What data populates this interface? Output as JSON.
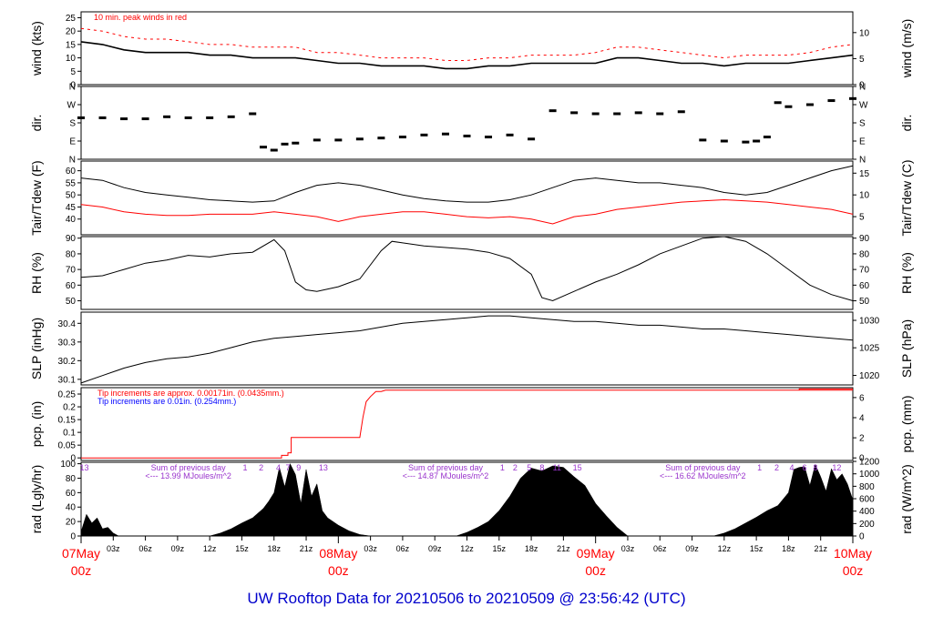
{
  "colors": {
    "axis": "#000000",
    "peak": "#ff0000",
    "rain": "#ff0000",
    "tip_blue": "#0000ff",
    "purple": "#9933cc",
    "title": "#0000cc",
    "date": "#ff0000"
  },
  "title": "UW Rooftop Data for 20210506  to  20210509 @ 23:56:42  (UTC)",
  "chart_data": [
    {
      "type": "line",
      "id": "wind",
      "ylabel": "wind (kts)",
      "ylabel_right": "wind (m/s)",
      "ylim": [
        0,
        27.2
      ],
      "yticks": [
        0,
        5,
        10,
        15,
        20,
        25
      ],
      "yticks_right": [
        {
          "label": "0",
          "at": 0
        },
        {
          "label": "5",
          "at": 9.72
        },
        {
          "label": "10",
          "at": 19.44
        }
      ],
      "annotation": "10 min. peak winds in red",
      "series": [
        {
          "role": "wind",
          "x": [
            0,
            2,
            4,
            6,
            8,
            10,
            12,
            14,
            16,
            18,
            20,
            22,
            24,
            26,
            28,
            30,
            32,
            34,
            36,
            38,
            40,
            42,
            44,
            46,
            48,
            50,
            52,
            54,
            56,
            58,
            60,
            62,
            64,
            66,
            68,
            70,
            72
          ],
          "y": [
            16,
            15,
            13,
            12,
            12,
            12,
            11,
            11,
            10,
            10,
            10,
            9,
            8,
            8,
            7,
            7,
            7,
            6,
            6,
            7,
            7,
            8,
            8,
            8,
            8,
            10,
            10,
            9,
            8,
            8,
            7,
            8,
            8,
            8,
            9,
            10,
            11
          ]
        },
        {
          "role": "peak",
          "x": [
            0,
            2,
            4,
            6,
            8,
            10,
            12,
            14,
            16,
            18,
            20,
            22,
            24,
            26,
            28,
            30,
            32,
            34,
            36,
            38,
            40,
            42,
            44,
            46,
            48,
            50,
            52,
            54,
            56,
            58,
            60,
            62,
            64,
            66,
            68,
            70,
            72
          ],
          "y": [
            21,
            20,
            18,
            17,
            17,
            16,
            15,
            15,
            14,
            14,
            14,
            12,
            12,
            11,
            10,
            10,
            10,
            9,
            9,
            10,
            10,
            11,
            11,
            11,
            12,
            14,
            14,
            13,
            12,
            11,
            10,
            11,
            11,
            11,
            12,
            14,
            15
          ]
        }
      ]
    },
    {
      "type": "scatter",
      "id": "dir",
      "ylabel": "dir.",
      "ylabel_right": "dir.",
      "ylim": [
        0,
        360
      ],
      "yticks": [
        {
          "label": "N",
          "at": 0
        },
        {
          "label": "E",
          "at": 90
        },
        {
          "label": "S",
          "at": 180
        },
        {
          "label": "W",
          "at": 270
        },
        {
          "label": "N",
          "at": 360
        }
      ],
      "series": [
        {
          "x": [
            0,
            2,
            4,
            6,
            8,
            10,
            12,
            14,
            16,
            17,
            18,
            19,
            20,
            22,
            24,
            26,
            28,
            30,
            32,
            34,
            36,
            38,
            40,
            42,
            44,
            46,
            48,
            50,
            52,
            54,
            56,
            58,
            60,
            62,
            63,
            64,
            65,
            66,
            68,
            70,
            72
          ],
          "y": [
            205,
            205,
            200,
            200,
            210,
            205,
            205,
            210,
            225,
            60,
            45,
            75,
            80,
            95,
            95,
            100,
            105,
            110,
            120,
            125,
            115,
            110,
            120,
            100,
            240,
            230,
            225,
            225,
            230,
            225,
            235,
            95,
            90,
            85,
            90,
            110,
            280,
            260,
            270,
            290,
            300
          ]
        }
      ]
    },
    {
      "type": "line",
      "id": "temp",
      "ylabel": "Tair/Tdew (F)",
      "ylabel_right": "Tair/Tdew (C)",
      "ylim": [
        33.5,
        64
      ],
      "yticks": [
        40,
        45,
        50,
        55,
        60
      ],
      "yticks_right": [
        {
          "label": "5",
          "at": 41
        },
        {
          "label": "10",
          "at": 50
        },
        {
          "label": "15",
          "at": 59
        }
      ],
      "series": [
        {
          "name": "Tair",
          "x": [
            0,
            2,
            4,
            6,
            8,
            10,
            12,
            14,
            16,
            18,
            20,
            22,
            24,
            26,
            28,
            30,
            32,
            34,
            36,
            38,
            40,
            42,
            44,
            46,
            48,
            50,
            52,
            54,
            56,
            58,
            60,
            62,
            64,
            66,
            68,
            70,
            72
          ],
          "y": [
            57,
            56,
            53,
            51,
            50,
            49,
            48,
            47.5,
            47,
            47.5,
            51,
            54,
            55,
            54,
            52,
            50,
            48.5,
            47.5,
            47,
            47,
            48,
            50,
            53,
            56,
            57,
            56,
            55,
            55,
            54,
            53,
            51,
            50,
            51,
            54,
            57,
            60,
            62
          ]
        },
        {
          "name": "Tdew",
          "x": [
            0,
            2,
            4,
            6,
            8,
            10,
            12,
            14,
            16,
            18,
            20,
            22,
            24,
            26,
            28,
            30,
            32,
            34,
            36,
            38,
            40,
            42,
            44,
            46,
            48,
            50,
            52,
            54,
            56,
            58,
            60,
            62,
            64,
            66,
            68,
            70,
            72
          ],
          "y": [
            46,
            45,
            43,
            42,
            41.5,
            41.5,
            42,
            42,
            42,
            43,
            42,
            41,
            39,
            41,
            42,
            43,
            43,
            42,
            41,
            40.5,
            41,
            40,
            38,
            41,
            42,
            44,
            45,
            46,
            47,
            47.5,
            48,
            47.5,
            47,
            46,
            45,
            44,
            42
          ]
        }
      ]
    },
    {
      "type": "line",
      "id": "rh",
      "ylabel": "RH (%)",
      "ylabel_right": "RH (%)",
      "ylim": [
        44.5,
        91
      ],
      "yticks": [
        50,
        60,
        70,
        80,
        90
      ],
      "series": [
        {
          "x": [
            0,
            2,
            4,
            6,
            8,
            10,
            12,
            14,
            16,
            18,
            19,
            20,
            21,
            22,
            24,
            26,
            28,
            29,
            30,
            32,
            34,
            36,
            38,
            40,
            42,
            43,
            44,
            46,
            48,
            50,
            52,
            54,
            56,
            58,
            60,
            62,
            64,
            66,
            68,
            70,
            72
          ],
          "y": [
            65,
            66,
            70,
            74,
            76,
            79,
            78,
            80,
            81,
            89,
            82,
            62,
            57,
            56,
            59,
            64,
            82,
            88,
            87,
            85,
            84,
            83,
            81,
            77,
            67,
            52,
            50,
            56,
            62,
            67,
            73,
            80,
            85,
            90,
            91,
            88,
            80,
            70,
            60,
            54,
            50
          ]
        }
      ]
    },
    {
      "type": "line",
      "id": "slp",
      "ylabel": "SLP (inHg)",
      "ylabel_right": "SLP (hPa)",
      "ylim": [
        30.07,
        30.46
      ],
      "yticks": [
        30.1,
        30.2,
        30.3,
        30.4
      ],
      "yticks_right": [
        {
          "label": "1020",
          "at": 30.121
        },
        {
          "label": "1025",
          "at": 30.269
        },
        {
          "label": "1030",
          "at": 30.416
        }
      ],
      "series": [
        {
          "x": [
            0,
            2,
            4,
            6,
            8,
            10,
            12,
            14,
            16,
            18,
            20,
            22,
            24,
            26,
            28,
            30,
            32,
            34,
            36,
            38,
            40,
            42,
            44,
            46,
            48,
            50,
            52,
            54,
            56,
            58,
            60,
            62,
            64,
            66,
            68,
            70,
            72
          ],
          "y": [
            30.08,
            30.12,
            30.16,
            30.19,
            30.21,
            30.22,
            30.24,
            30.27,
            30.3,
            30.32,
            30.33,
            30.34,
            30.35,
            30.36,
            30.38,
            30.4,
            30.41,
            30.42,
            30.43,
            30.44,
            30.44,
            30.43,
            30.42,
            30.41,
            30.41,
            30.4,
            30.39,
            30.39,
            30.38,
            30.37,
            30.37,
            30.36,
            30.35,
            30.34,
            30.33,
            30.32,
            30.31
          ]
        }
      ]
    },
    {
      "type": "line",
      "id": "pcp",
      "ylabel": "pcp. (in)",
      "ylabel_right": "pcp. (mm)",
      "ylim": [
        -0.01,
        0.275
      ],
      "yticks": [
        0,
        0.05,
        0.1,
        0.15,
        0.2,
        0.25
      ],
      "yticks_right": [
        {
          "label": "0",
          "at": 0
        },
        {
          "label": "2",
          "at": 0.0787
        },
        {
          "label": "4",
          "at": 0.1575
        },
        {
          "label": "6",
          "at": 0.2362
        }
      ],
      "notes": [
        {
          "text": "Tip increments are approx. 0.00171in. (0.0435mm.)",
          "color": "red"
        },
        {
          "text": "Tip increments are 0.01in. (0.254mm.)",
          "color": "blue"
        }
      ],
      "series": [
        {
          "name": "tipping",
          "x": [
            0,
            18.7,
            18.7,
            19.3,
            19.3,
            19.6,
            19.6,
            26.0,
            26.3,
            26.6,
            27.0,
            27.5,
            28.0,
            28.4,
            72
          ],
          "y": [
            0,
            0,
            0.01,
            0.01,
            0.02,
            0.02,
            0.08,
            0.08,
            0.16,
            0.22,
            0.24,
            0.26,
            0.26,
            0.265,
            0.265
          ]
        },
        {
          "name": "tipping-late",
          "x": [
            67,
            67,
            72
          ],
          "y": [
            0.265,
            0.27,
            0.27
          ]
        }
      ]
    },
    {
      "type": "area",
      "id": "rad",
      "ylabel": "rad (Lgly/hr)",
      "ylabel_right": "rad (W/m^2)",
      "ylim": [
        0,
        102
      ],
      "yticks": [
        0,
        20,
        40,
        60,
        80,
        100
      ],
      "yticks_right": [
        {
          "label": "0",
          "at": 0
        },
        {
          "label": "200",
          "at": 17.2
        },
        {
          "label": "400",
          "at": 34.4
        },
        {
          "label": "600",
          "at": 51.6
        },
        {
          "label": "800",
          "at": 68.8
        },
        {
          "label": "1000",
          "at": 86.0
        },
        {
          "label": "1200",
          "at": 103.2
        }
      ],
      "day_notes": [
        {
          "x": 10,
          "text": "Sum of previous day"
        },
        {
          "x": 10,
          "text": "<--- 13.99 MJoules/m^2"
        },
        {
          "x": 34,
          "text": "Sum of previous day"
        },
        {
          "x": 34,
          "text": "<--- 14.87 MJoules/m^2"
        },
        {
          "x": 58,
          "text": "Sum of previous day"
        },
        {
          "x": 58,
          "text": "<--- 16.62 MJoules/m^2"
        }
      ],
      "hour_marks": [
        {
          "x": 0.3,
          "label": "13"
        },
        {
          "x": 15.3,
          "label": "1"
        },
        {
          "x": 16.8,
          "label": "2"
        },
        {
          "x": 18.4,
          "label": "4"
        },
        {
          "x": 19.3,
          "label": "7"
        },
        {
          "x": 20.3,
          "label": "9"
        },
        {
          "x": 22.6,
          "label": "13"
        },
        {
          "x": 39.3,
          "label": "1"
        },
        {
          "x": 40.5,
          "label": "2"
        },
        {
          "x": 41.8,
          "label": "5"
        },
        {
          "x": 43,
          "label": "8"
        },
        {
          "x": 44.4,
          "label": "11"
        },
        {
          "x": 46.3,
          "label": "15"
        },
        {
          "x": 63.3,
          "label": "1"
        },
        {
          "x": 64.9,
          "label": "2"
        },
        {
          "x": 66.3,
          "label": "4"
        },
        {
          "x": 67.5,
          "label": "6"
        },
        {
          "x": 68.5,
          "label": "8"
        },
        {
          "x": 70.5,
          "label": "12"
        }
      ],
      "series": [
        {
          "x": [
            0,
            0.5,
            1,
            1.5,
            2,
            2.5,
            3,
            3.5,
            12,
            13,
            14,
            15,
            16,
            17,
            17.5,
            18,
            18.5,
            19,
            19.5,
            20,
            20.5,
            21,
            21.5,
            22,
            22.5,
            23,
            24,
            25,
            26,
            27,
            35,
            36,
            37,
            38,
            39,
            40,
            41,
            42,
            43,
            44,
            45,
            46,
            47,
            48,
            49,
            50,
            51,
            59,
            60,
            61,
            62,
            63,
            64,
            65,
            66,
            66.5,
            67,
            67.5,
            68,
            68.5,
            69,
            69.5,
            70,
            70.5,
            71,
            71.5,
            72
          ],
          "y": [
            6,
            30,
            18,
            25,
            10,
            12,
            4,
            0,
            0,
            4,
            10,
            18,
            25,
            38,
            48,
            60,
            95,
            68,
            100,
            85,
            45,
            92,
            55,
            72,
            35,
            25,
            15,
            7,
            2,
            0,
            0,
            5,
            12,
            20,
            35,
            55,
            80,
            94,
            90,
            97,
            95,
            82,
            70,
            45,
            28,
            12,
            0,
            0,
            4,
            10,
            18,
            26,
            35,
            42,
            60,
            92,
            95,
            96,
            70,
            99,
            82,
            62,
            93,
            78,
            86,
            72,
            50
          ]
        }
      ]
    }
  ],
  "xaxis": {
    "range_hours": [
      0,
      72
    ],
    "hour_ticks": [
      "03z",
      "06z",
      "09z",
      "12z",
      "15z",
      "18z",
      "21z",
      "03z",
      "06z",
      "09z",
      "12z",
      "15z",
      "18z",
      "21z",
      "03z",
      "06z",
      "09z",
      "12z",
      "15z",
      "18z",
      "21z"
    ],
    "hour_tick_x": [
      3,
      6,
      9,
      12,
      15,
      18,
      21,
      27,
      30,
      33,
      36,
      39,
      42,
      45,
      51,
      54,
      57,
      60,
      63,
      66,
      69
    ],
    "date_labels": [
      {
        "x": 0,
        "date": "07May",
        "hour": "00z"
      },
      {
        "x": 24,
        "date": "08May",
        "hour": "00z"
      },
      {
        "x": 48,
        "date": "09May",
        "hour": "00z"
      },
      {
        "x": 72,
        "date": "10May",
        "hour": "00z"
      }
    ]
  }
}
